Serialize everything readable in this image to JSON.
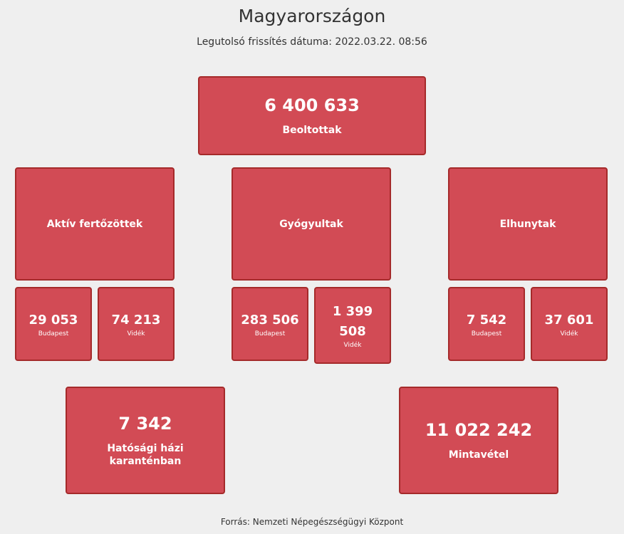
{
  "header": {
    "title": "Magyarországon",
    "last_update": "Legutolsó frissítés dátuma: 2022.03.22. 08:56"
  },
  "vaccinated": {
    "value": "6 400 633",
    "label": "Beoltottak"
  },
  "categories": [
    {
      "label": "Aktív fertőzöttek",
      "budapest": {
        "value": "29 053",
        "label": "Budapest"
      },
      "videk": {
        "value": "74 213",
        "label": "Vidék"
      }
    },
    {
      "label": "Gyógyultak",
      "budapest": {
        "value": "283 506",
        "label": "Budapest"
      },
      "videk": {
        "value_line1": "1 399",
        "value_line2": "508",
        "label": "Vidék"
      }
    },
    {
      "label": "Elhunytak",
      "budapest": {
        "value": "7 542",
        "label": "Budapest"
      },
      "videk": {
        "value": "37 601",
        "label": "Vidék"
      }
    }
  ],
  "quarantine": {
    "value": "7 342",
    "label_line1": "Hatósági házi",
    "label_line2": "karanténban"
  },
  "sampling": {
    "value": "11 022 242",
    "label": "Mintavétel"
  },
  "footer": {
    "source": "Forrás: Nemzeti Népegészségügyi Központ"
  }
}
